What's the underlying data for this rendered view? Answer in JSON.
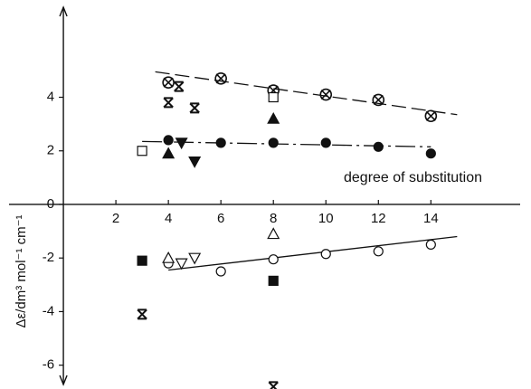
{
  "chart_data": {
    "type": "scatter",
    "x_label": "degree of substitution",
    "y_label": "Δε/dm³ mol⁻¹ cm⁻¹",
    "xlim": [
      -2.07,
      17.4
    ],
    "ylim": [
      -6.72,
      7.36
    ],
    "xticks": [
      2,
      4,
      6,
      8,
      10,
      12,
      14
    ],
    "yticks": [
      -6,
      -4,
      -2,
      0,
      2,
      4
    ],
    "grid": false,
    "series": [
      {
        "marker": "circled-x",
        "color": "#111111",
        "x": [
          4,
          6,
          8,
          10,
          12,
          14
        ],
        "values": [
          4.55,
          4.7,
          4.25,
          4.1,
          3.9,
          3.3
        ]
      },
      {
        "marker": "bowtie",
        "color": "#111111",
        "x": [
          4,
          4.4,
          5,
          3,
          8
        ],
        "values": [
          3.8,
          4.4,
          3.6,
          -4.1,
          -6.8
        ]
      },
      {
        "marker": "square-open",
        "color": "#111111",
        "x": [
          3,
          8
        ],
        "values": [
          2.0,
          4.0
        ]
      },
      {
        "marker": "circle-filled",
        "color": "#111111",
        "x": [
          4,
          6,
          8,
          10,
          12,
          14
        ],
        "values": [
          2.4,
          2.3,
          2.3,
          2.3,
          2.15,
          1.9
        ]
      },
      {
        "marker": "triangle-down-filled",
        "color": "#111111",
        "x": [
          4.5,
          5
        ],
        "values": [
          2.3,
          1.6
        ]
      },
      {
        "marker": "triangle-up-filled",
        "color": "#111111",
        "x": [
          4,
          8
        ],
        "values": [
          1.9,
          3.2
        ]
      },
      {
        "marker": "square-filled",
        "color": "#111111",
        "x": [
          3,
          8
        ],
        "values": [
          -2.1,
          -2.85
        ]
      },
      {
        "marker": "circle-open",
        "color": "#111111",
        "x": [
          4,
          6,
          8,
          10,
          12,
          14
        ],
        "values": [
          -2.2,
          -2.5,
          -2.05,
          -1.85,
          -1.75,
          -1.5
        ]
      },
      {
        "marker": "triangle-up-open",
        "color": "#111111",
        "x": [
          4,
          8
        ],
        "values": [
          -2.0,
          -1.1
        ]
      },
      {
        "marker": "triangle-down-open",
        "color": "#111111",
        "x": [
          4.5,
          5
        ],
        "values": [
          -2.2,
          -2.0
        ]
      }
    ],
    "fits": [
      {
        "style": "dashed",
        "color": "#111111",
        "x": [
          3.5,
          15
        ],
        "values": [
          4.95,
          3.35
        ]
      },
      {
        "style": "dash-dot",
        "color": "#111111",
        "x": [
          3,
          14
        ],
        "values": [
          2.35,
          2.15
        ]
      },
      {
        "style": "solid",
        "color": "#111111",
        "x": [
          4,
          15
        ],
        "values": [
          -2.45,
          -1.2
        ]
      }
    ]
  }
}
